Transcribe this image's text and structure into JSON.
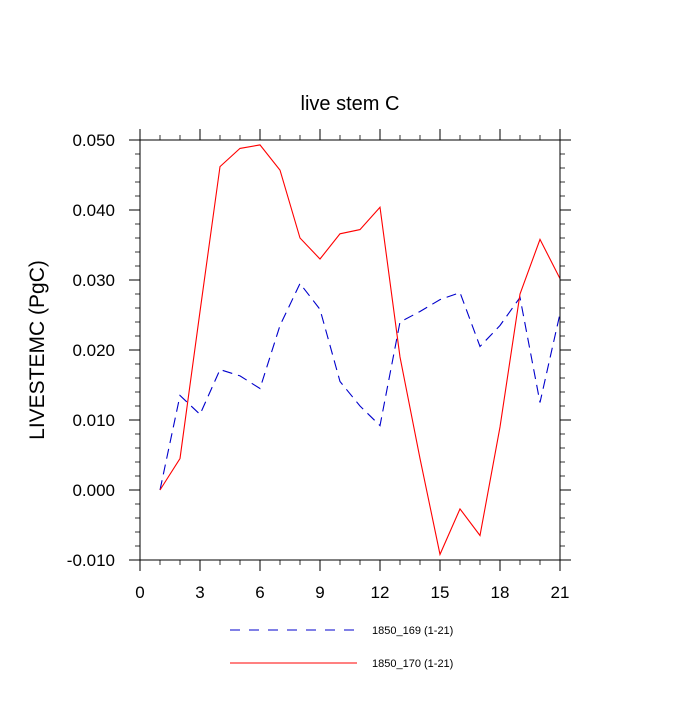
{
  "chart_data": {
    "type": "line",
    "title": "live stem C",
    "xlabel": "",
    "ylabel": "LIVESTEMC  (PgC)",
    "xlim": [
      0,
      21
    ],
    "ylim": [
      -0.01,
      0.05
    ],
    "grid": false,
    "legend_position": "bottom",
    "x_ticks": [
      0,
      3,
      6,
      9,
      12,
      15,
      18,
      21
    ],
    "x_tick_labels": [
      "0",
      "3",
      "6",
      "9",
      "12",
      "15",
      "18",
      "21"
    ],
    "y_ticks": [
      -0.01,
      0.0,
      0.01,
      0.02,
      0.03,
      0.04,
      0.05
    ],
    "y_tick_labels": [
      "-0.010",
      "0.000",
      "0.010",
      "0.020",
      "0.030",
      "0.040",
      "0.050"
    ],
    "x": [
      1,
      2,
      3,
      4,
      5,
      6,
      7,
      8,
      9,
      10,
      11,
      12,
      13,
      14,
      15,
      16,
      17,
      18,
      19,
      20,
      21
    ],
    "series": [
      {
        "name": "1850_169 (1-21)",
        "color": "#0000cc",
        "style": "dashed",
        "values": [
          0.0,
          0.0135,
          0.0108,
          0.0172,
          0.0163,
          0.0145,
          0.0235,
          0.0295,
          0.0258,
          0.0155,
          0.012,
          0.0092,
          0.024,
          0.0255,
          0.0272,
          0.0282,
          0.0205,
          0.0235,
          0.0275,
          0.0125,
          0.0252
        ]
      },
      {
        "name": "1850_170 (1-21)",
        "color": "#ff0000",
        "style": "solid",
        "values": [
          0.0,
          0.0045,
          0.0255,
          0.0462,
          0.0488,
          0.0493,
          0.0457,
          0.036,
          0.033,
          0.0366,
          0.0372,
          0.0404,
          0.019,
          0.0045,
          -0.0092,
          -0.0027,
          -0.0065,
          0.009,
          0.028,
          0.0358,
          0.0302
        ]
      }
    ]
  }
}
